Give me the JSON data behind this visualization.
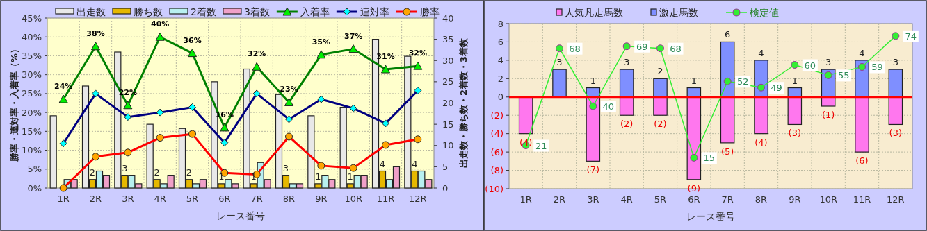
{
  "chart_data": [
    {
      "type": "bar",
      "xlabel": "レース番号",
      "ylabel": "勝率・連対率・入着率（%）",
      "y2label": "出走数・勝ち数・2着数・3着数",
      "grid": true,
      "legend": "top",
      "categories": [
        "1R",
        "2R",
        "3R",
        "4R",
        "5R",
        "6R",
        "7R",
        "8R",
        "9R",
        "10R",
        "11R",
        "12R"
      ],
      "ylim": [
        0,
        45
      ],
      "yticks": [
        {
          "value": 0,
          "label": "0%"
        },
        {
          "value": 5,
          "label": "5%"
        },
        {
          "value": 10,
          "label": "10%"
        },
        {
          "value": 15,
          "label": "15%"
        },
        {
          "value": 20,
          "label": "20%"
        },
        {
          "value": 25,
          "label": "25%"
        },
        {
          "value": 30,
          "label": "30%"
        },
        {
          "value": 35,
          "label": "35%"
        },
        {
          "value": 40,
          "label": "40%"
        },
        {
          "value": 45,
          "label": "45%"
        }
      ],
      "y2lim": [
        0,
        40
      ],
      "y2ticks": [
        0,
        5,
        10,
        15,
        20,
        25,
        30,
        35,
        40
      ],
      "series": [
        {
          "name": "出走数",
          "color": "#e8e8e8",
          "axis": "y2",
          "values": [
            17,
            24,
            32,
            15,
            14,
            25,
            28,
            22,
            17,
            19,
            35,
            31
          ]
        },
        {
          "name": "勝ち数",
          "color": "#e6b800",
          "axis": "y2",
          "values": [
            0,
            2,
            3,
            2,
            2,
            1,
            1,
            3,
            1,
            1,
            4,
            4
          ],
          "value_labels": [
            null,
            "2",
            "3",
            "2",
            "2",
            "1",
            "1",
            "3",
            "1",
            "1",
            "4",
            "4"
          ]
        },
        {
          "name": "2着数",
          "color": "#b8f0f0",
          "axis": "y2",
          "values": [
            2,
            4,
            3,
            1,
            1,
            2,
            6,
            1,
            3,
            3,
            2,
            4
          ]
        },
        {
          "name": "3着数",
          "color": "#f0a0c8",
          "axis": "y2",
          "values": [
            2,
            3,
            1,
            3,
            2,
            1,
            2,
            1,
            2,
            3,
            5,
            2
          ]
        },
        {
          "name": "入着率",
          "type": "line",
          "color": "#008000",
          "marker": "triangle",
          "values": [
            23.5,
            37.5,
            21.9,
            40.0,
            35.7,
            16.0,
            32.1,
            22.7,
            35.3,
            36.8,
            31.4,
            32.3
          ],
          "value_labels": [
            "24%",
            "38%",
            "22%",
            "40%",
            "36%",
            "16%",
            "32%",
            "23%",
            "35%",
            "37%",
            "31%",
            "32%"
          ]
        },
        {
          "name": "連対率",
          "type": "line",
          "color": "#000080",
          "marker": "diamond",
          "values": [
            11.8,
            25.0,
            18.8,
            20.0,
            21.4,
            12.0,
            25.0,
            18.2,
            23.5,
            21.1,
            17.1,
            25.8
          ]
        },
        {
          "name": "勝率",
          "type": "line",
          "color": "#ff0000",
          "marker": "circle",
          "values": [
            0,
            8.3,
            9.4,
            13.3,
            14.3,
            4.0,
            3.6,
            13.6,
            5.9,
            5.3,
            11.4,
            12.9
          ]
        }
      ]
    },
    {
      "type": "bar",
      "stacked": true,
      "xlabel": "レース番号",
      "grid": true,
      "legend": "top",
      "categories": [
        "1R",
        "2R",
        "3R",
        "4R",
        "5R",
        "6R",
        "7R",
        "8R",
        "9R",
        "10R",
        "11R",
        "12R"
      ],
      "ylim": [
        -10,
        8
      ],
      "yticks": [
        {
          "value": -10,
          "label": "(10)"
        },
        {
          "value": -8,
          "label": "(8)"
        },
        {
          "value": -6,
          "label": "(6)"
        },
        {
          "value": -4,
          "label": "(4)"
        },
        {
          "value": -2,
          "label": "(2)"
        },
        0,
        2,
        4,
        6,
        8
      ],
      "y2lim": [
        0,
        80
      ],
      "ref_lines": [
        {
          "axis": "y",
          "value": 0,
          "color": "#ff0000"
        }
      ],
      "series": [
        {
          "name": "人気凡走馬数",
          "color": "#ff77ee",
          "values": [
            -4,
            0,
            -7,
            -2,
            -2,
            -9,
            -5,
            -4,
            -3,
            -1,
            -6,
            -3
          ],
          "value_labels": [
            "(4)",
            null,
            "(7)",
            "(2)",
            "(2)",
            "(9)",
            "(5)",
            "(4)",
            "(3)",
            "(1)",
            "(6)",
            "(3)"
          ]
        },
        {
          "name": "激走馬数",
          "color": "#7f8fff",
          "values": [
            0,
            3,
            1,
            3,
            2,
            1,
            6,
            4,
            1,
            3,
            4,
            3
          ],
          "value_labels": [
            null,
            "3",
            "1",
            "3",
            "2",
            "1",
            "6",
            "4",
            "1",
            "3",
            "4",
            "3"
          ]
        },
        {
          "name": "検定値",
          "type": "line",
          "axis": "y2",
          "color": "#33ee33",
          "marker": "circle",
          "values": [
            21,
            68,
            40,
            69,
            68,
            15,
            52,
            49,
            60,
            55,
            59,
            74
          ],
          "value_labels": [
            "21",
            "68",
            "40",
            "69",
            "68",
            "15",
            "52",
            "49",
            "60",
            "55",
            "59",
            "74"
          ]
        }
      ]
    }
  ]
}
